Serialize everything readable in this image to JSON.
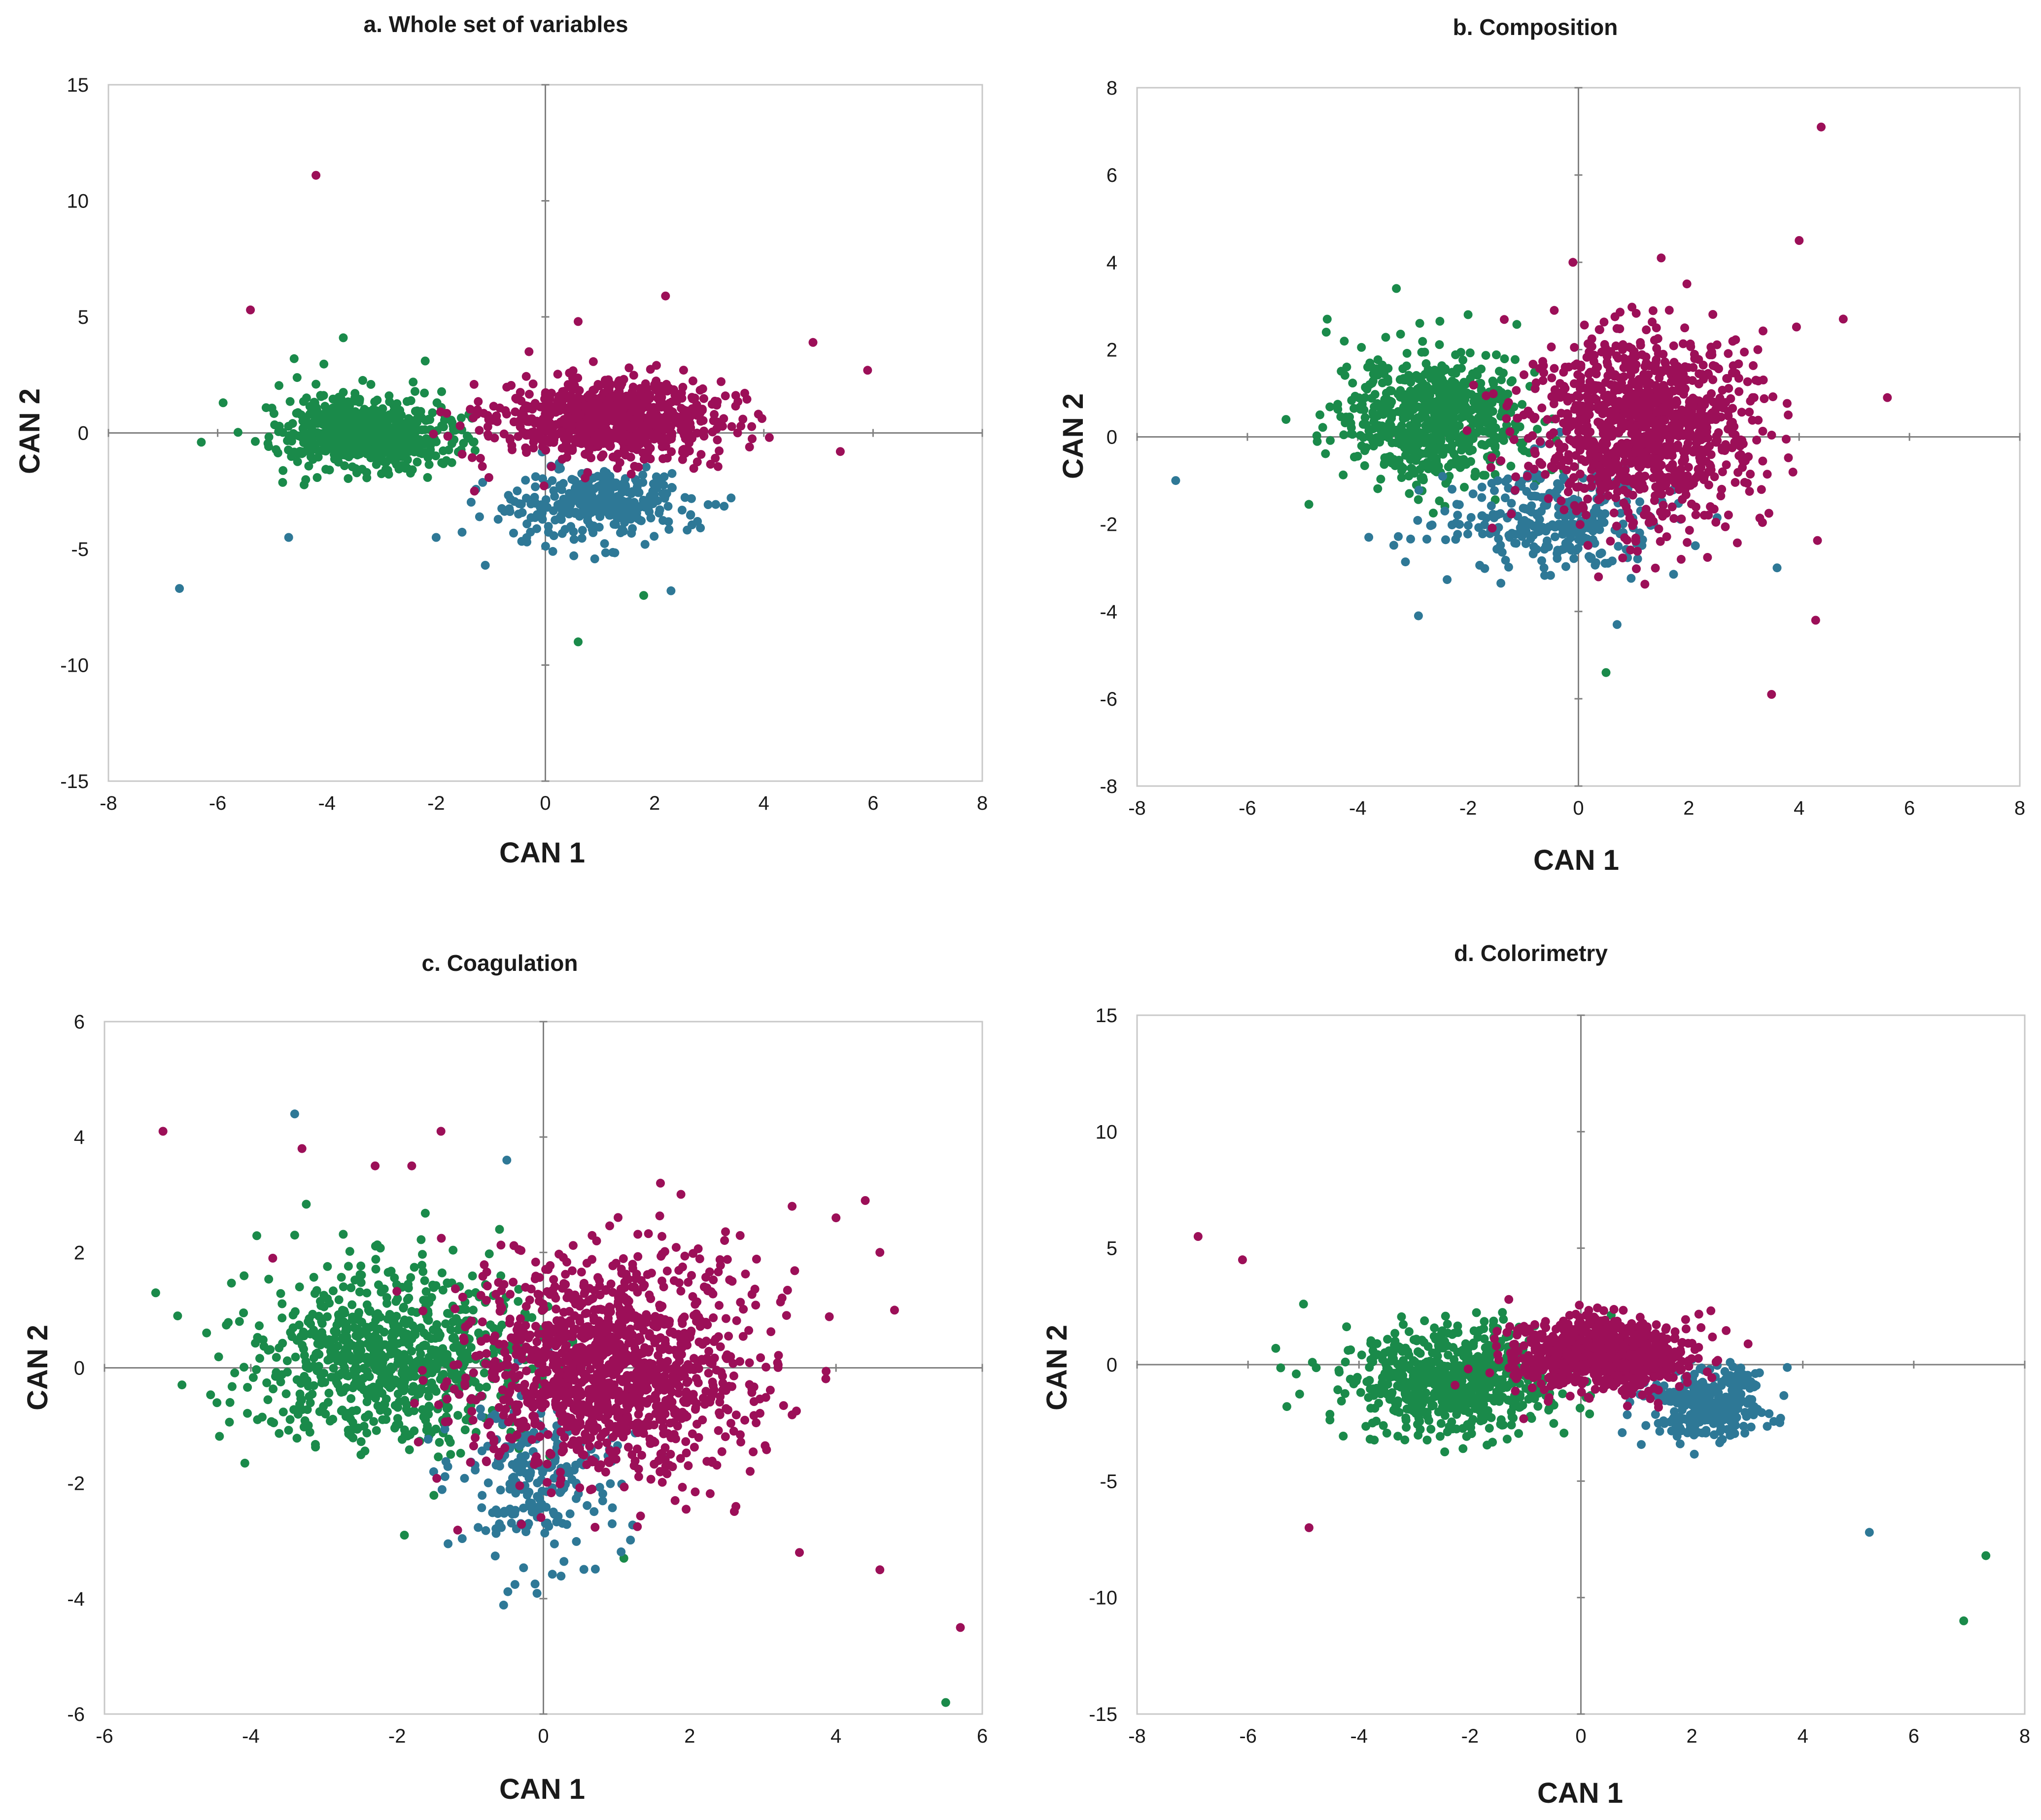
{
  "colors": {
    "green": "#1a8a4a",
    "blue": "#2e7896",
    "magenta": "#9c0f58"
  },
  "chart_data": [
    {
      "type": "scatter",
      "title": "a. Whole set of variables",
      "xlabel": "CAN 1",
      "ylabel": "CAN 2",
      "xlim": [
        -8,
        8
      ],
      "ylim": [
        -15,
        15
      ],
      "xticks": [
        "-8",
        "-6",
        "-4",
        "-2",
        "0",
        "2",
        "4",
        "6",
        "8"
      ],
      "yticks": [
        "-15",
        "-10",
        "-5",
        "0",
        "5",
        "10",
        "15"
      ],
      "series": [
        {
          "name": "green",
          "color": "#1a8a4a",
          "clusters": [
            {
              "n": 700,
              "cx": -3.3,
              "cy": 0.0,
              "sx": 0.75,
              "sy": 0.75
            }
          ],
          "points": [
            [
              -6.3,
              -0.4
            ],
            [
              -5.9,
              1.3
            ],
            [
              -4.2,
              2.1
            ],
            [
              -3.7,
              4.1
            ],
            [
              -2.2,
              3.1
            ],
            [
              -4.6,
              3.2
            ],
            [
              1.8,
              -7.0
            ],
            [
              0.6,
              -9.0
            ]
          ]
        },
        {
          "name": "blue",
          "color": "#2e7896",
          "clusters": [
            {
              "n": 320,
              "cx": 1.0,
              "cy": -3.1,
              "sx": 0.8,
              "sy": 0.75
            }
          ],
          "points": [
            [
              -6.7,
              -6.7
            ],
            [
              -4.7,
              -4.5
            ],
            [
              -2.0,
              -4.5
            ],
            [
              -1.1,
              -5.7
            ],
            [
              2.3,
              -6.8
            ],
            [
              3.4,
              -2.8
            ]
          ]
        },
        {
          "name": "magenta",
          "color": "#9c0f58",
          "clusters": [
            {
              "n": 800,
              "cx": 1.2,
              "cy": 0.6,
              "sx": 1.05,
              "sy": 0.85
            }
          ],
          "points": [
            [
              -4.2,
              11.1
            ],
            [
              -5.4,
              5.3
            ],
            [
              2.2,
              5.9
            ],
            [
              0.6,
              4.8
            ],
            [
              5.9,
              2.7
            ],
            [
              5.4,
              -0.8
            ],
            [
              4.9,
              3.9
            ],
            [
              -0.3,
              3.5
            ]
          ]
        }
      ]
    },
    {
      "type": "scatter",
      "title": "b. Composition",
      "xlabel": "CAN 1",
      "ylabel": "CAN 2",
      "xlim": [
        -8,
        8
      ],
      "ylim": [
        -8,
        8
      ],
      "xticks": [
        "-8",
        "-6",
        "-4",
        "-2",
        "0",
        "2",
        "4",
        "6",
        "8"
      ],
      "yticks": [
        "-8",
        "-6",
        "-4",
        "-2",
        "0",
        "2",
        "4",
        "6",
        "8"
      ],
      "series": [
        {
          "name": "green",
          "color": "#1a8a4a",
          "clusters": [
            {
              "n": 650,
              "cx": -2.6,
              "cy": 0.4,
              "sx": 0.85,
              "sy": 0.75
            }
          ],
          "points": [
            [
              -5.3,
              0.4
            ],
            [
              -3.3,
              3.4
            ],
            [
              -2.0,
              2.8
            ],
            [
              0.5,
              -5.4
            ],
            [
              -4.2,
              1.6
            ]
          ]
        },
        {
          "name": "blue",
          "color": "#2e7896",
          "clusters": [
            {
              "n": 300,
              "cx": -0.5,
              "cy": -1.9,
              "sx": 1.0,
              "sy": 0.6
            }
          ],
          "points": [
            [
              -7.3,
              -1.0
            ],
            [
              -2.9,
              -4.1
            ],
            [
              0.7,
              -4.3
            ],
            [
              3.6,
              -3.0
            ],
            [
              -3.8,
              -2.3
            ]
          ]
        },
        {
          "name": "magenta",
          "color": "#9c0f58",
          "clusters": [
            {
              "n": 1100,
              "cx": 1.2,
              "cy": 0.2,
              "sx": 1.0,
              "sy": 1.1
            }
          ],
          "points": [
            [
              4.4,
              7.1
            ],
            [
              4.0,
              4.5
            ],
            [
              5.6,
              0.9
            ],
            [
              3.5,
              -5.9
            ],
            [
              4.3,
              -4.2
            ],
            [
              4.8,
              2.7
            ],
            [
              1.5,
              4.1
            ],
            [
              -0.1,
              4.0
            ]
          ]
        }
      ]
    },
    {
      "type": "scatter",
      "title": "c. Coagulation",
      "xlabel": "CAN 1",
      "ylabel": "CAN 2",
      "xlim": [
        -6,
        6
      ],
      "ylim": [
        -6,
        6
      ],
      "xticks": [
        "-6",
        "-4",
        "-2",
        "0",
        "2",
        "4",
        "6"
      ],
      "yticks": [
        "-6",
        "-4",
        "-2",
        "0",
        "2",
        "4",
        "6"
      ],
      "series": [
        {
          "name": "green",
          "color": "#1a8a4a",
          "clusters": [
            {
              "n": 800,
              "cx": -2.1,
              "cy": 0.2,
              "sx": 0.95,
              "sy": 0.75
            }
          ],
          "points": [
            [
              -5.3,
              1.3
            ],
            [
              -5.0,
              0.9
            ],
            [
              -1.9,
              -2.9
            ],
            [
              1.1,
              -3.3
            ],
            [
              5.5,
              -5.8
            ],
            [
              -3.4,
              2.3
            ],
            [
              -0.6,
              2.4
            ]
          ]
        },
        {
          "name": "blue",
          "color": "#2e7896",
          "clusters": [
            {
              "n": 220,
              "cx": -0.1,
              "cy": -2.0,
              "sx": 0.55,
              "sy": 0.7
            }
          ],
          "points": [
            [
              -3.4,
              4.4
            ],
            [
              -0.5,
              3.6
            ],
            [
              -1.5,
              -1.8
            ]
          ]
        },
        {
          "name": "magenta",
          "color": "#9c0f58",
          "clusters": [
            {
              "n": 1300,
              "cx": 0.9,
              "cy": 0.0,
              "sx": 0.95,
              "sy": 0.95
            }
          ],
          "points": [
            [
              -5.2,
              4.1
            ],
            [
              -3.3,
              3.8
            ],
            [
              -1.4,
              4.1
            ],
            [
              -2.3,
              3.5
            ],
            [
              -1.8,
              3.5
            ],
            [
              4.4,
              2.9
            ],
            [
              4.6,
              2.0
            ],
            [
              4.8,
              1.0
            ],
            [
              5.7,
              -4.5
            ],
            [
              4.6,
              -3.5
            ],
            [
              3.5,
              -3.2
            ],
            [
              -3.7,
              1.9
            ],
            [
              1.8,
              -2.3
            ],
            [
              4.0,
              2.6
            ],
            [
              3.4,
              2.8
            ],
            [
              1.6,
              3.2
            ]
          ]
        }
      ]
    },
    {
      "type": "scatter",
      "title": "d. Colorimetry",
      "xlabel": "CAN 1",
      "ylabel": "CAN 2",
      "xlim": [
        -8,
        8
      ],
      "ylim": [
        -15,
        15
      ],
      "xticks": [
        "-8",
        "-6",
        "-4",
        "-2",
        "0",
        "2",
        "4",
        "6",
        "8"
      ],
      "yticks": [
        "-15",
        "-10",
        "-5",
        "0",
        "5",
        "10",
        "15"
      ],
      "series": [
        {
          "name": "green",
          "color": "#1a8a4a",
          "clusters": [
            {
              "n": 650,
              "cx": -2.3,
              "cy": -0.7,
              "sx": 0.95,
              "sy": 1.1
            }
          ],
          "points": [
            [
              -5.0,
              2.6
            ],
            [
              -5.5,
              0.7
            ],
            [
              -5.3,
              -1.8
            ],
            [
              7.3,
              -8.2
            ],
            [
              6.9,
              -11.0
            ],
            [
              -3.8,
              -3.2
            ]
          ]
        },
        {
          "name": "blue",
          "color": "#2e7896",
          "clusters": [
            {
              "n": 300,
              "cx": 2.3,
              "cy": -1.7,
              "sx": 0.5,
              "sy": 0.8
            }
          ],
          "points": [
            [
              5.2,
              -7.2
            ],
            [
              3.6,
              -2.3
            ]
          ]
        },
        {
          "name": "magenta",
          "color": "#9c0f58",
          "clusters": [
            {
              "n": 850,
              "cx": 0.4,
              "cy": 0.4,
              "sx": 0.75,
              "sy": 0.75
            }
          ],
          "points": [
            [
              -6.9,
              5.5
            ],
            [
              -6.1,
              4.5
            ],
            [
              -4.9,
              -7.0
            ],
            [
              -1.3,
              2.8
            ]
          ]
        }
      ]
    }
  ]
}
